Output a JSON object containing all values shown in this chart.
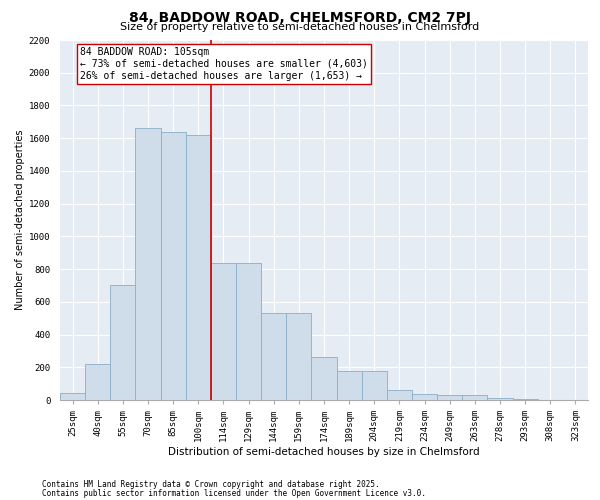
{
  "title": "84, BADDOW ROAD, CHELMSFORD, CM2 7PJ",
  "subtitle": "Size of property relative to semi-detached houses in Chelmsford",
  "xlabel": "Distribution of semi-detached houses by size in Chelmsford",
  "ylabel": "Number of semi-detached properties",
  "footnote1": "Contains HM Land Registry data © Crown copyright and database right 2025.",
  "footnote2": "Contains public sector information licensed under the Open Government Licence v3.0.",
  "annotation_line1": "84 BADDOW ROAD: 105sqm",
  "annotation_line2": "← 73% of semi-detached houses are smaller (4,603)",
  "annotation_line3": "26% of semi-detached houses are larger (1,653) →",
  "bar_color": "#cfdcea",
  "bar_edge_color": "#8aaec8",
  "vline_color": "#cc0000",
  "annotation_box_color": "#cc0000",
  "bg_color": "#e6ecf4",
  "plot_bg": "#e6ecf4",
  "categories": [
    "25sqm",
    "40sqm",
    "55sqm",
    "70sqm",
    "85sqm",
    "100sqm",
    "114sqm",
    "129sqm",
    "144sqm",
    "159sqm",
    "174sqm",
    "189sqm",
    "204sqm",
    "219sqm",
    "234sqm",
    "249sqm",
    "263sqm",
    "278sqm",
    "293sqm",
    "308sqm",
    "323sqm"
  ],
  "values": [
    40,
    220,
    700,
    1660,
    1640,
    1620,
    840,
    840,
    530,
    530,
    260,
    180,
    180,
    60,
    35,
    30,
    30,
    10,
    5,
    0,
    0
  ],
  "vline_x": 5.5,
  "ylim": [
    0,
    2200
  ],
  "yticks": [
    0,
    200,
    400,
    600,
    800,
    1000,
    1200,
    1400,
    1600,
    1800,
    2000,
    2200
  ],
  "title_fontsize": 10,
  "subtitle_fontsize": 8,
  "annotation_fontsize": 7,
  "tick_fontsize": 6.5,
  "xlabel_fontsize": 7.5,
  "ylabel_fontsize": 7,
  "footnote_fontsize": 5.5
}
